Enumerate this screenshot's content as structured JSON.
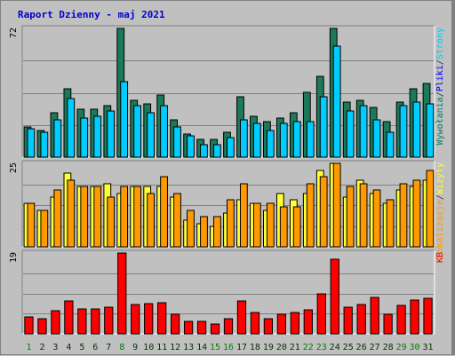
{
  "header": {
    "title": "Raport Dzienny -  maj 2021"
  },
  "colors": {
    "title": "#0000cc",
    "visits": "#1a7a5a",
    "pages": "#00ccff",
    "files": "#0000ff",
    "hits": "#008060",
    "sites": "#ffff33",
    "volume": "#ff9900",
    "kb": "#ff0000",
    "day_number": "#003300",
    "weekend_number": "#008000",
    "panel_bg": "#c0c0c0",
    "grid": "#808080"
  },
  "chart_data": [
    {
      "type": "bar",
      "panel": "top",
      "ymax_label": "72",
      "ylim": [
        0,
        72
      ],
      "right_labels": [
        {
          "text": "Wywołania",
          "color": "#008060"
        },
        {
          "text": "/",
          "color": "#333333"
        },
        {
          "text": "Pliki",
          "color": "#0000ff"
        },
        {
          "text": "/",
          "color": "#333333"
        },
        {
          "text": "Strony",
          "color": "#00ccff"
        }
      ],
      "categories": [
        "1",
        "2",
        "3",
        "4",
        "5",
        "6",
        "7",
        "8",
        "9",
        "10",
        "11",
        "12",
        "13",
        "14",
        "15",
        "16",
        "17",
        "18",
        "19",
        "20",
        "21",
        "22",
        "23",
        "24",
        "25",
        "26",
        "27",
        "28",
        "29",
        "30",
        "31"
      ],
      "series": [
        {
          "name": "Wywołania",
          "values": [
            17,
            15,
            25,
            38,
            27,
            27,
            29,
            72,
            32,
            30,
            35,
            21,
            13,
            10,
            10,
            14,
            34,
            23,
            20,
            22,
            25,
            36,
            45,
            72,
            31,
            32,
            28,
            20,
            31,
            38,
            41
          ]
        },
        {
          "name": "Strony",
          "values": [
            16,
            14,
            21,
            33,
            22,
            23,
            26,
            42,
            29,
            25,
            29,
            17,
            12,
            7,
            7,
            11,
            21,
            19,
            15,
            19,
            20,
            20,
            34,
            62,
            26,
            29,
            21,
            14,
            29,
            31,
            30
          ]
        }
      ]
    },
    {
      "type": "bar",
      "panel": "middle",
      "ymax_label": "25",
      "ylim": [
        0,
        25
      ],
      "right_labels": [
        {
          "text": "Lokalizacje",
          "color": "#ff9900"
        },
        {
          "text": "/",
          "color": "#333333"
        },
        {
          "text": "Wizyty",
          "color": "#ffff33"
        }
      ],
      "categories": [
        "1",
        "2",
        "3",
        "4",
        "5",
        "6",
        "7",
        "8",
        "9",
        "10",
        "11",
        "12",
        "13",
        "14",
        "15",
        "16",
        "17",
        "18",
        "19",
        "20",
        "21",
        "22",
        "23",
        "24",
        "25",
        "26",
        "27",
        "28",
        "29",
        "30",
        "31"
      ],
      "series": [
        {
          "name": "Wizyty",
          "values": [
            13,
            11,
            15,
            22,
            18,
            18,
            19,
            16,
            18,
            18,
            18,
            15,
            8,
            7,
            6,
            10,
            14,
            13,
            11,
            16,
            14,
            16,
            23,
            25,
            15,
            20,
            16,
            13,
            17,
            18,
            20
          ]
        },
        {
          "name": "Lokalizacje",
          "values": [
            13,
            11,
            17,
            20,
            18,
            18,
            15,
            18,
            18,
            16,
            21,
            16,
            11,
            9,
            9,
            14,
            19,
            13,
            13,
            12,
            12,
            19,
            21,
            25,
            18,
            19,
            17,
            14,
            19,
            20,
            23
          ]
        }
      ]
    },
    {
      "type": "bar",
      "panel": "bottom",
      "ymax_label": "19",
      "ylim": [
        0,
        19
      ],
      "right_labels": [
        {
          "text": "KB",
          "color": "#ff0000"
        }
      ],
      "categories": [
        "1",
        "2",
        "3",
        "4",
        "5",
        "6",
        "7",
        "8",
        "9",
        "10",
        "11",
        "12",
        "13",
        "14",
        "15",
        "16",
        "17",
        "18",
        "19",
        "20",
        "21",
        "22",
        "23",
        "24",
        "25",
        "26",
        "27",
        "28",
        "29",
        "30",
        "31"
      ],
      "series": [
        {
          "name": "KB",
          "values": [
            4,
            3.6,
            5.5,
            7.8,
            5.8,
            5.8,
            6.3,
            19,
            6.8,
            7,
            7.3,
            4.6,
            2.9,
            2.9,
            2.2,
            3.5,
            7.8,
            5.1,
            3.6,
            4.6,
            5.1,
            5.6,
            9.3,
            17.5,
            6.3,
            6.8,
            8.5,
            4.6,
            6.6,
            7.9,
            8.3
          ]
        }
      ]
    }
  ],
  "weekend_days": [
    "1",
    "8",
    "15",
    "16",
    "22",
    "23",
    "29",
    "30"
  ]
}
